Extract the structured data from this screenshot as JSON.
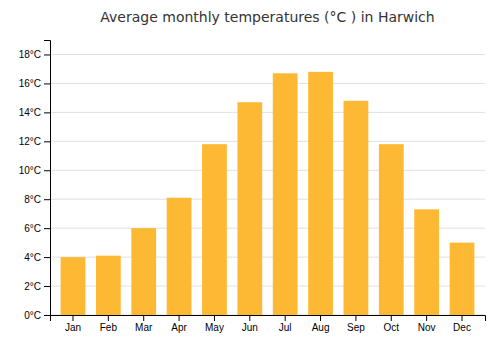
{
  "chart_data": {
    "type": "bar",
    "title": "Average monthly temperatures (°C ) in Harwich",
    "categories": [
      "Jan",
      "Feb",
      "Mar",
      "Apr",
      "May",
      "Jun",
      "Jul",
      "Aug",
      "Sep",
      "Oct",
      "Nov",
      "Dec"
    ],
    "values": [
      4.0,
      4.1,
      6.0,
      8.1,
      11.8,
      14.7,
      16.7,
      16.8,
      14.8,
      11.8,
      7.3,
      5.0
    ],
    "color": "#FDB933",
    "ylim": [
      0,
      19
    ],
    "yticks": [
      {
        "value": 0,
        "label": "0°C"
      },
      {
        "value": 2,
        "label": "2°C"
      },
      {
        "value": 4,
        "label": "4°C"
      },
      {
        "value": 6,
        "label": "6°C"
      },
      {
        "value": 8,
        "label": "8°C"
      },
      {
        "value": 10,
        "label": "10°C"
      },
      {
        "value": 12,
        "label": "12°C"
      },
      {
        "value": 14,
        "label": "14°C"
      },
      {
        "value": 16,
        "label": "16°C"
      },
      {
        "value": 18,
        "label": "18°C"
      }
    ],
    "grid": true
  }
}
